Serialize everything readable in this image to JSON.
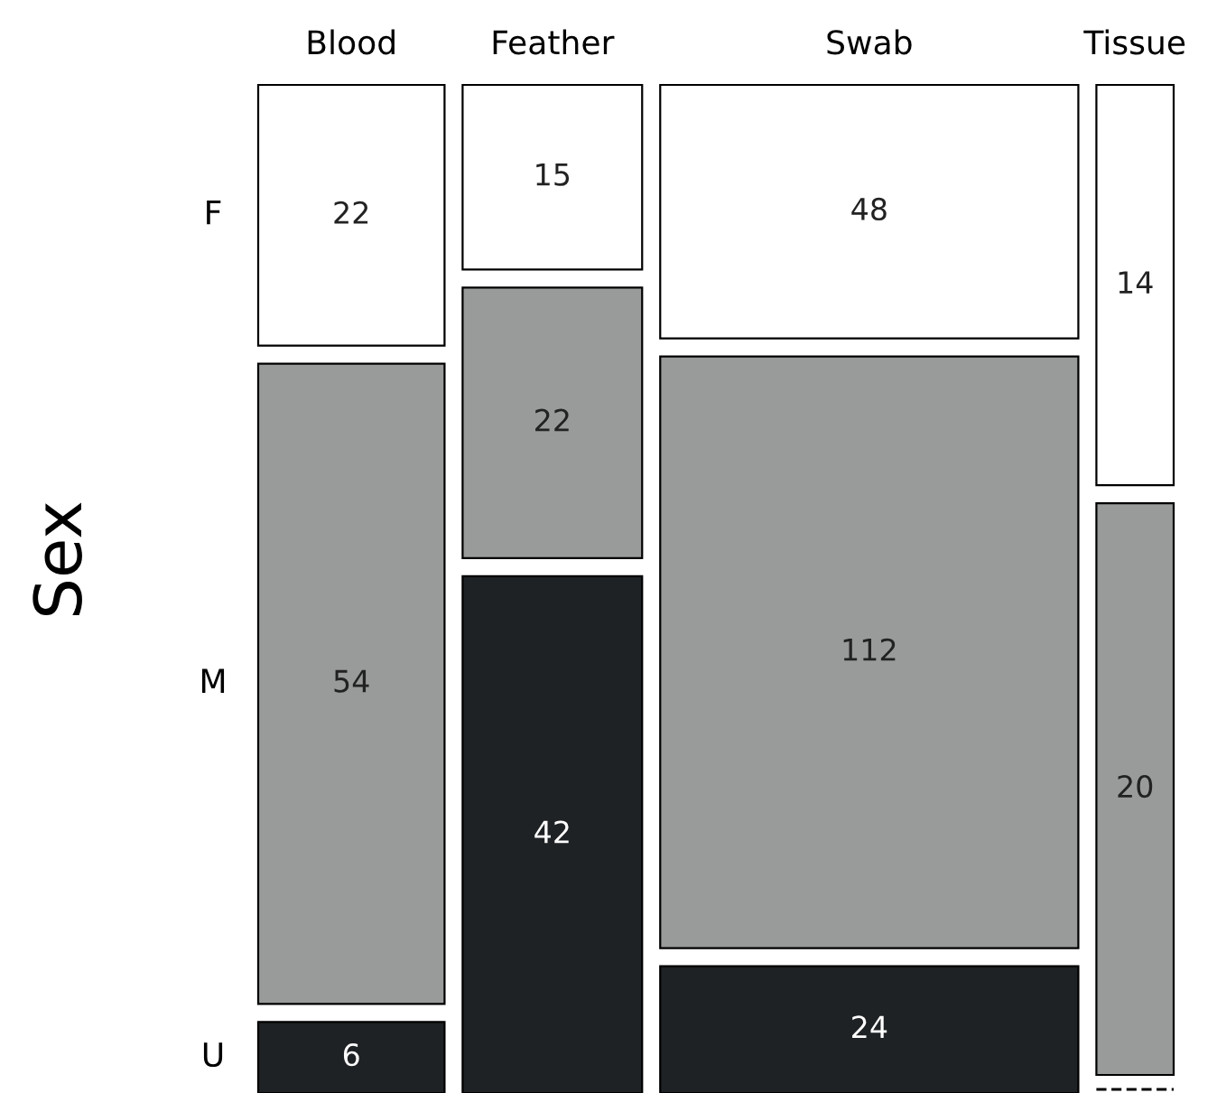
{
  "chart_data": {
    "type": "other",
    "ylabel": "Sex",
    "categories": [
      "Blood",
      "Feather",
      "Swab",
      "Tissue"
    ],
    "series": [
      {
        "name": "F",
        "color": "#ffffff",
        "values": [
          22,
          15,
          48,
          14
        ]
      },
      {
        "name": "M",
        "color": "#999b9b",
        "values": [
          54,
          22,
          112,
          20
        ]
      },
      {
        "name": "U",
        "color": "#1f2224",
        "values": [
          6,
          42,
          24,
          null
        ]
      }
    ],
    "data_labels": true
  }
}
